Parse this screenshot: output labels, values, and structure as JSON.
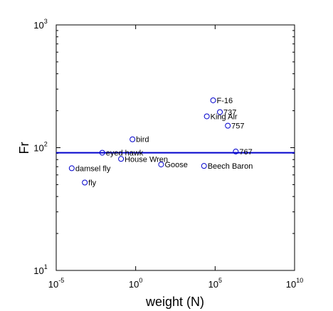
{
  "chart_data": {
    "type": "scatter",
    "xlabel": "weight (N)",
    "ylabel": "Fr",
    "xscale": "log",
    "yscale": "log",
    "xlim": [
      1e-05,
      10000000000
    ],
    "ylim": [
      10,
      1000
    ],
    "x_ticks": [
      {
        "base": "10",
        "exp": "-5"
      },
      {
        "base": "10",
        "exp": "0"
      },
      {
        "base": "10",
        "exp": "5"
      },
      {
        "base": "10",
        "exp": "10"
      }
    ],
    "y_ticks": [
      {
        "base": "10",
        "exp": "1"
      },
      {
        "base": "10",
        "exp": "2"
      },
      {
        "base": "10",
        "exp": "3"
      }
    ],
    "grid": false,
    "marker": "open-circle",
    "colors": {
      "marker": "#0000cc",
      "line": "#0000cc",
      "axis": "#000000",
      "text": "#000000"
    },
    "reference_line": {
      "y": 91
    },
    "points": [
      {
        "label": "fly",
        "x": 0.00063,
        "y": 52
      },
      {
        "label": "damsel fly",
        "x": 9.5e-05,
        "y": 68
      },
      {
        "label": "eyed hawk",
        "x": 0.0079,
        "y": 91
      },
      {
        "label": "House Wren",
        "x": 0.12,
        "y": 81
      },
      {
        "label": "bird",
        "x": 0.63,
        "y": 117
      },
      {
        "label": "Goose",
        "x": 40,
        "y": 73
      },
      {
        "label": "Beech Baron",
        "x": 20000,
        "y": 71
      },
      {
        "label": "King Air",
        "x": 30000,
        "y": 180
      },
      {
        "label": "F-16",
        "x": 75000,
        "y": 243
      },
      {
        "label": "737",
        "x": 200000,
        "y": 195
      },
      {
        "label": "757",
        "x": 630000,
        "y": 151
      },
      {
        "label": "767",
        "x": 2000000,
        "y": 93
      }
    ]
  }
}
